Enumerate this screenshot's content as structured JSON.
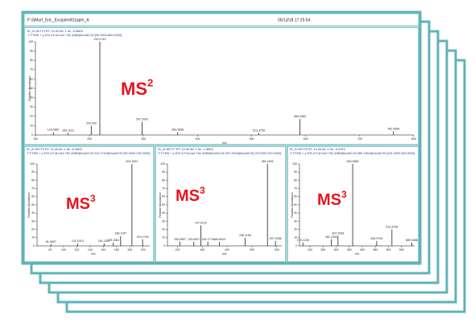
{
  "header": {
    "file": "F:\\SMurf_EnL_Excipient\\01ppm_A",
    "date": "05/13/18 17:25:54"
  },
  "chart_data": [
    {
      "type": "bar",
      "label": "MS",
      "label_sup": "2",
      "label_color": "#e8141e",
      "color": "#000000",
      "lines": [
        "ID_01 80774  RT: 10.49  AV: 1  NL: 6.56E6",
        "T: FTMS + p ESI d Full ms2 762.4285@hcd40.00 [50.0000-800.0000]"
      ],
      "xlabel": "m/z",
      "ylabel": "Relative Abundance",
      "x": [
        133.0867,
        160.1116,
        203.163,
        219.1742,
        297.2003,
        363.2686,
        513.3755,
        589.4362,
        762.4284
      ],
      "values": [
        3,
        2,
        10,
        100,
        14,
        3,
        2,
        17,
        4
      ],
      "xlim": [
        100,
        800
      ],
      "xticks": [
        100,
        200,
        300,
        400,
        500,
        600,
        700,
        800
      ],
      "ylim": [
        0,
        100
      ],
      "yticks": [
        0,
        10,
        20,
        30,
        40,
        50,
        60,
        70,
        80,
        90,
        100
      ]
    },
    {
      "type": "bar",
      "label": "MS",
      "label_sup": "3",
      "label_color": "#e8141e",
      "color": "#000000",
      "lines": [
        "ID_01 80776  RT: 10.49  AV: 1  NL: 6.26E5",
        "T: FTMS + p ESI d Full ms3 762.4285@hcd40.00 219.1742@hcd40.00 [50.0000-230.0000]"
      ],
      "xlabel": "m/z",
      "ylabel": "Relative Abundance",
      "x": [
        81.0697,
        121.1013,
        161.1011,
        175.1061,
        186.1197,
        203.1631,
        219.1744
      ],
      "values": [
        2,
        3,
        3,
        4,
        12,
        100,
        8
      ],
      "xlim": [
        60,
        230
      ],
      "xticks": [
        80,
        100,
        120,
        140,
        160,
        180,
        200,
        220
      ],
      "ylim": [
        0,
        100
      ],
      "yticks": [
        0,
        10,
        20,
        30,
        40,
        50,
        60,
        70,
        80,
        90,
        100
      ]
    },
    {
      "type": "bar",
      "label": "MS",
      "label_sup": "3",
      "label_color": "#e8141e",
      "color": "#000000",
      "lines": [
        "ID_01 80777  RT: 10.49  AV: 1  NL: 1.85E5",
        "T: FTMS + p ESI d Full ms3 762.4285@hcd40.00 297.2003@hcd40.00 [75.0000-310.0000]"
      ],
      "xlabel": "m/z",
      "ylabel": "Relative Abundance",
      "x": [
        105.0697,
        133.0627,
        147.0122,
        161.1776,
        184.8024,
        236.1196,
        281.1601,
        297.2056
      ],
      "values": [
        5,
        5,
        25,
        5,
        5,
        10,
        100,
        6
      ],
      "xlim": [
        80,
        310
      ],
      "xticks": [
        100,
        150,
        200,
        250,
        300
      ],
      "ylim": [
        0,
        100
      ],
      "yticks": [
        0,
        10,
        20,
        30,
        40,
        50,
        60,
        70,
        80,
        90,
        100
      ]
    },
    {
      "type": "bar",
      "label": "MS",
      "label_sup": "3",
      "label_color": "#e8141e",
      "color": "#000000",
      "lines": [
        "ID_01 80778  RT: 10.49  AV: 1  NL: 6.47E5",
        "T: FTMS + p ESI d Full ms3 762.4285@hcd40.00 589.4362@hcd40.00 [161.0000-600.0000]"
      ],
      "xlabel": "m/z",
      "ylabel": "Relative Abundance",
      "x": [
        173.1228,
        281.1433,
        307.2008,
        363.2689,
        454.9749,
        513.3736,
        589.4366
      ],
      "values": [
        4,
        8,
        12,
        100,
        6,
        20,
        4
      ],
      "xlim": [
        160,
        600
      ],
      "xticks": [
        200,
        250,
        300,
        350,
        400,
        450,
        500,
        550
      ],
      "ylim": [
        0,
        100
      ],
      "yticks": [
        0,
        10,
        20,
        30,
        40,
        50,
        60,
        70,
        80,
        90,
        100
      ]
    }
  ]
}
